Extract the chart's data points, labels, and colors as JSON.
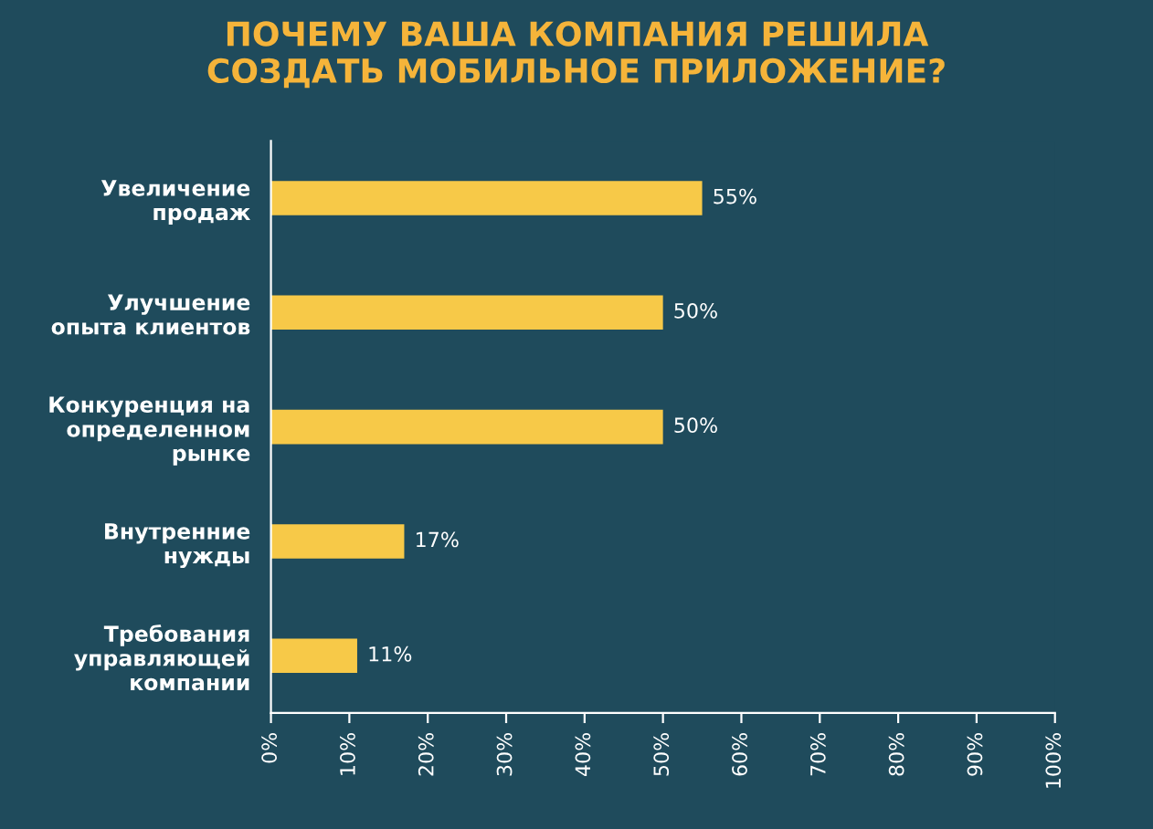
{
  "chart_data": {
    "type": "bar",
    "orientation": "horizontal",
    "title": "ПОЧЕМУ ВАША КОМПАНИЯ РЕШИЛА\nСОЗДАТЬ МОБИЛЬНОЕ ПРИЛОЖЕНИЕ?",
    "categories": [
      "Увеличение\nпродаж",
      "Улучшение\nопыта клиентов",
      "Конкуренция на\nопределенном\nрынке",
      "Внутренние\nнужды",
      "Требования\nуправляющей\nкомпании"
    ],
    "values": [
      55,
      50,
      50,
      17,
      11
    ],
    "value_labels": [
      "55%",
      "50%",
      "50%",
      "17%",
      "11%"
    ],
    "color": "#f7c948",
    "xlim": [
      0,
      100
    ],
    "xticks": [
      {
        "value": 0,
        "label": "0%"
      },
      {
        "value": 10,
        "label": "10%"
      },
      {
        "value": 20,
        "label": "20%"
      },
      {
        "value": 30,
        "label": "30%"
      },
      {
        "value": 40,
        "label": "40%"
      },
      {
        "value": 50,
        "label": "50%"
      },
      {
        "value": 60,
        "label": "60%"
      },
      {
        "value": 70,
        "label": "70%"
      },
      {
        "value": 80,
        "label": "80%"
      },
      {
        "value": 90,
        "label": "90%"
      },
      {
        "value": 100,
        "label": "100%"
      }
    ],
    "grid": false,
    "legend": false
  }
}
